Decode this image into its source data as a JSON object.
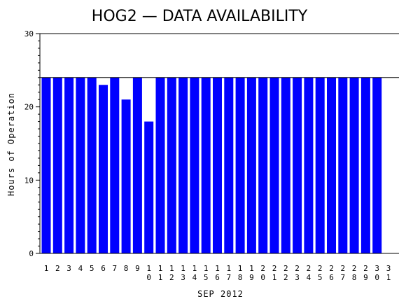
{
  "chart_data": {
    "type": "bar",
    "title": "HOG2 — DATA AVAILABILITY",
    "xlabel": "SEP 2012",
    "ylabel": "Hours of Operation",
    "categories": [
      "1",
      "2",
      "3",
      "4",
      "5",
      "6",
      "7",
      "8",
      "9",
      "10",
      "11",
      "12",
      "13",
      "14",
      "15",
      "16",
      "17",
      "18",
      "19",
      "20",
      "21",
      "22",
      "23",
      "24",
      "25",
      "26",
      "27",
      "28",
      "29",
      "30",
      "31"
    ],
    "values": [
      24,
      24,
      24,
      24,
      24,
      23,
      24,
      21,
      24,
      18,
      24,
      24,
      24,
      24,
      24,
      24,
      24,
      24,
      24,
      24,
      24,
      24,
      24,
      24,
      24,
      24,
      24,
      24,
      24,
      24,
      null
    ],
    "ylim": [
      0,
      30
    ],
    "yticks": [
      0,
      10,
      20,
      30
    ],
    "reference_line": 24,
    "grid": false,
    "colors": {
      "bar": "#0000ff",
      "axis": "#000000",
      "background": "#ffffff"
    }
  }
}
